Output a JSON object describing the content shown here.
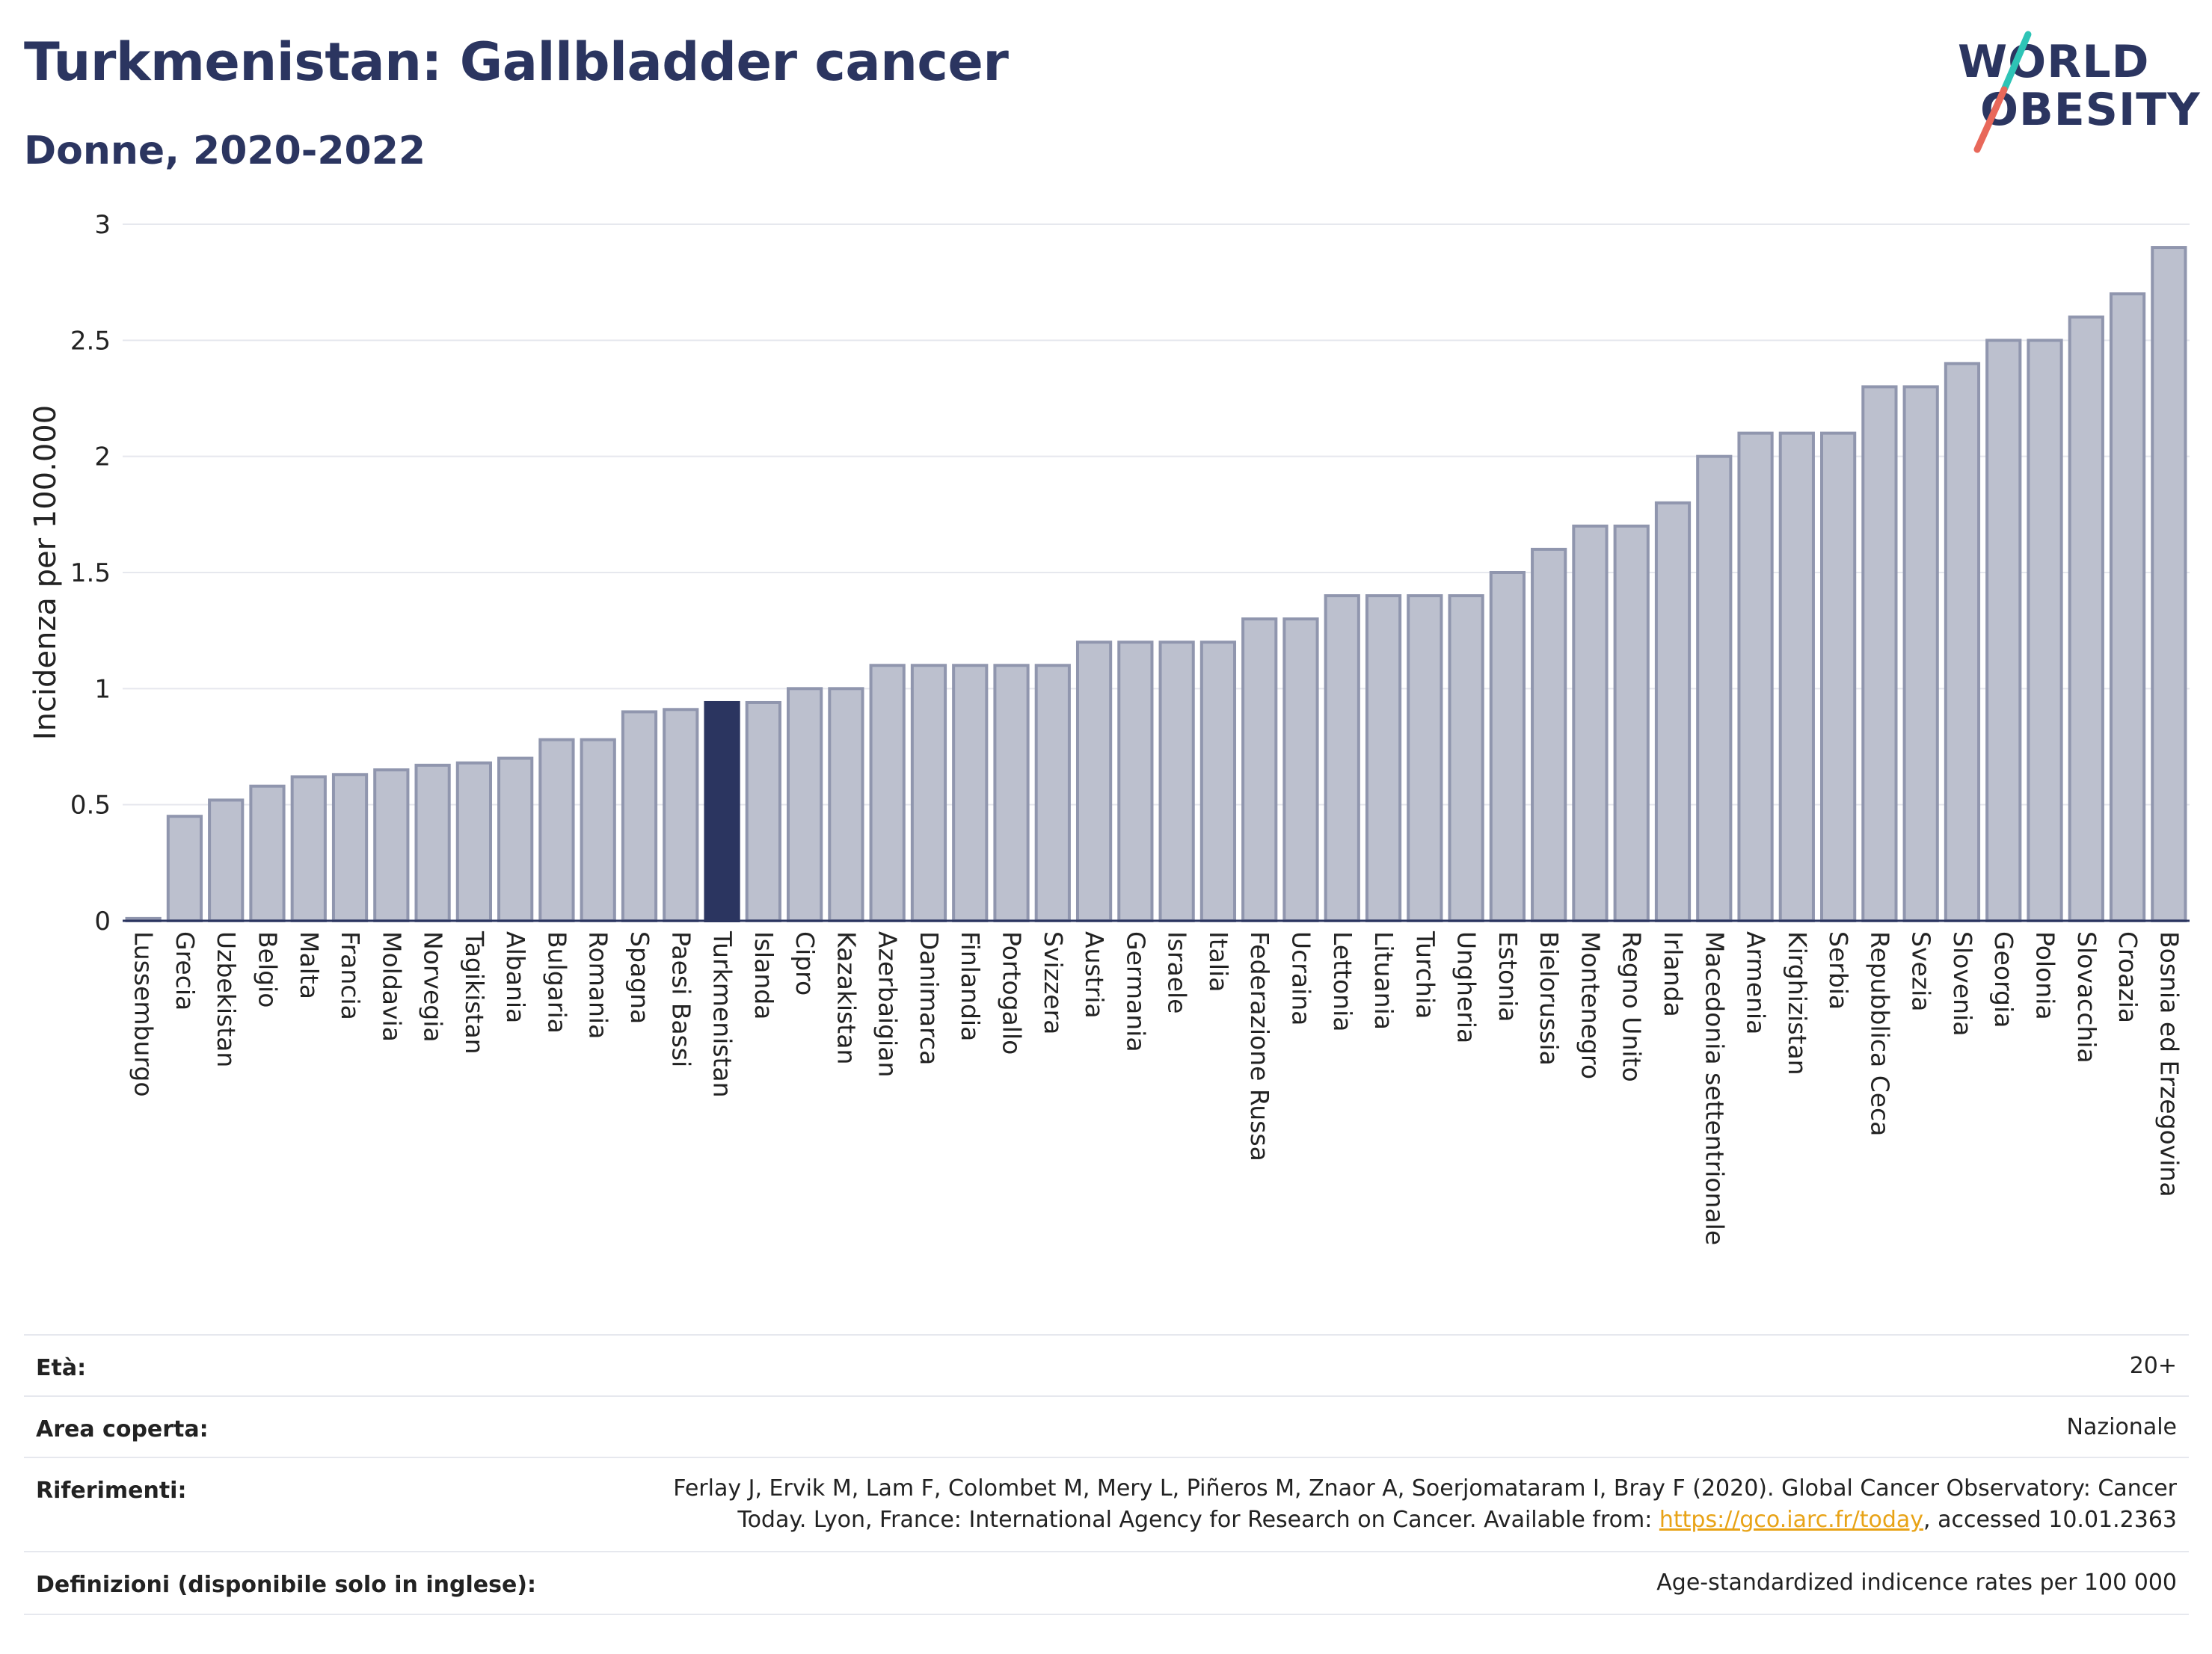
{
  "header": {
    "title": "Turkmenistan: Gallbladder cancer",
    "subtitle": "Donne, 2020-2022"
  },
  "logo": {
    "line1": "WORLD",
    "line2": "OBESITY",
    "slash_colors": [
      "#2ec4b6",
      "#e8685a"
    ]
  },
  "chart_data": {
    "type": "bar",
    "ylabel": "Incidenza per 100.000",
    "ylim": [
      0,
      3
    ],
    "yticks": [
      "0",
      "0.5",
      "1",
      "1.5",
      "2",
      "2.5",
      "3"
    ],
    "highlight": "Turkmenistan",
    "colors": {
      "bar": "#bcc0ce",
      "bar_stroke": "#9096ae",
      "highlight": "#2b3560",
      "grid": "#e6e8ee"
    },
    "categories": [
      "Lussemburgo",
      "Grecia",
      "Uzbekistan",
      "Belgio",
      "Malta",
      "Francia",
      "Moldavia",
      "Norvegia",
      "Tagikistan",
      "Albania",
      "Bulgaria",
      "Romania",
      "Spagna",
      "Paesi Bassi",
      "Turkmenistan",
      "Islanda",
      "Cipro",
      "Kazakistan",
      "Azerbaigian",
      "Danimarca",
      "Finlandia",
      "Portogallo",
      "Svizzera",
      "Austria",
      "Germania",
      "Israele",
      "Italia",
      "Federazione Russa",
      "Ucraina",
      "Lettonia",
      "Lituania",
      "Turchia",
      "Ungheria",
      "Estonia",
      "Bielorussia",
      "Montenegro",
      "Regno Unito",
      "Irlanda",
      "Macedonia settentrionale",
      "Armenia",
      "Kirghizistan",
      "Serbia",
      "Repubblica Ceca",
      "Svezia",
      "Slovenia",
      "Georgia",
      "Polonia",
      "Slovacchia",
      "Croazia",
      "Bosnia ed Erzegovina"
    ],
    "values": [
      0.01,
      0.45,
      0.52,
      0.58,
      0.62,
      0.63,
      0.65,
      0.67,
      0.68,
      0.7,
      0.78,
      0.78,
      0.9,
      0.91,
      0.94,
      0.94,
      1.0,
      1.0,
      1.1,
      1.1,
      1.1,
      1.1,
      1.1,
      1.2,
      1.2,
      1.2,
      1.2,
      1.3,
      1.3,
      1.4,
      1.4,
      1.4,
      1.4,
      1.5,
      1.6,
      1.7,
      1.7,
      1.8,
      2.0,
      2.1,
      2.1,
      2.1,
      2.3,
      2.3,
      2.4,
      2.5,
      2.5,
      2.6,
      2.7,
      2.9
    ]
  },
  "meta": {
    "age_label": "Età:",
    "age_value": "20+",
    "area_label": "Area coperta:",
    "area_value": "Nazionale",
    "refs_label": "Riferimenti:",
    "refs_line1": "Ferlay J, Ervik M, Lam F, Colombet M, Mery L, Piñeros M, Znaor A, Soerjomataram I, Bray F (2020). Global Cancer Observatory: Cancer",
    "refs_line2_pre": "Today. Lyon, France: International Agency for Research on Cancer. Available from: ",
    "refs_link": "https://gco.iarc.fr/today",
    "refs_line2_post": ", accessed 10.01.2363",
    "defs_label": "Definizioni (disponibile solo in inglese):",
    "defs_value": "Age-standardized indicence rates per 100 000"
  }
}
